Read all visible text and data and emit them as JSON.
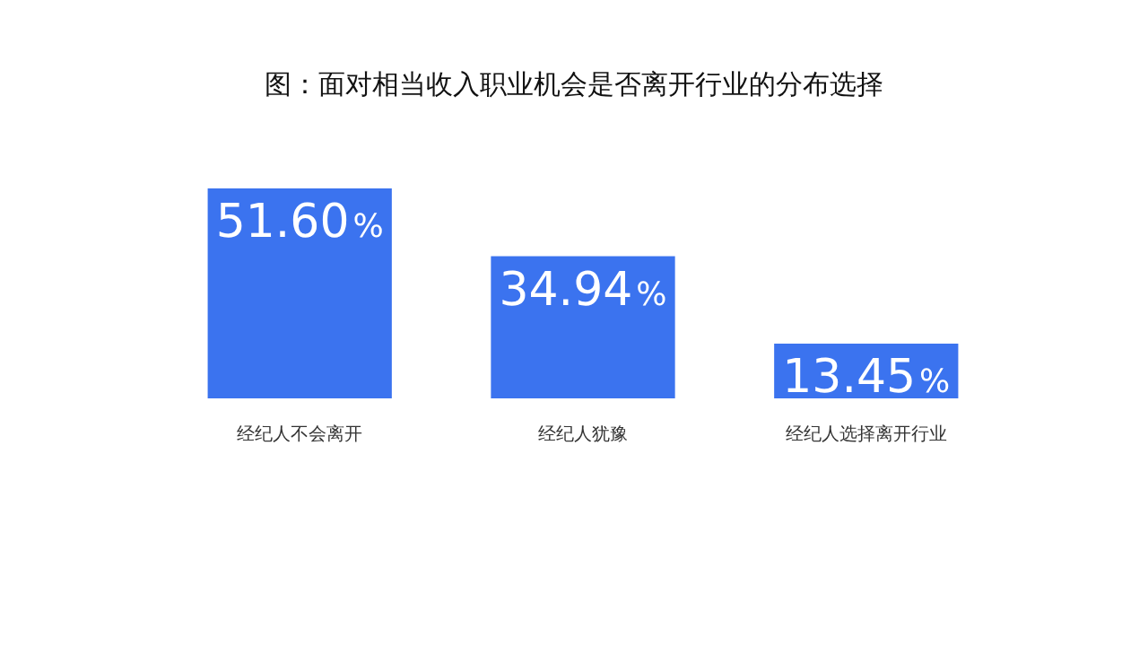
{
  "chart_data": {
    "type": "bar",
    "title": "图：面对相当收入职业机会是否离开行业的分布选择",
    "categories": [
      "经纪人不会离开",
      "经纪人犹豫",
      "经纪人选择离开行业"
    ],
    "values": [
      51.6,
      34.94,
      13.45
    ],
    "value_labels": [
      "51.60%",
      "34.94%",
      "13.45%"
    ],
    "color": "#3b73ef"
  }
}
